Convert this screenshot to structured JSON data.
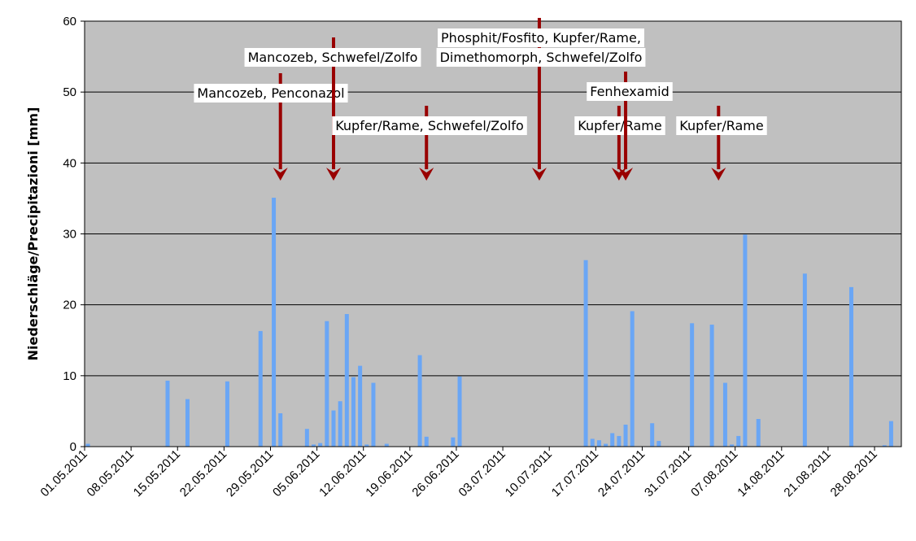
{
  "chart_data": {
    "type": "bar",
    "title": "",
    "xlabel": "",
    "ylabel": "Niederschläge/Precipitazioni [mm]",
    "ylim": [
      0,
      60
    ],
    "yticks": [
      0,
      10,
      20,
      30,
      40,
      50,
      60
    ],
    "grid": true,
    "x_start": "01.05.2011",
    "xtick_labels": [
      "01.05.2011",
      "08.05.2011",
      "15.05.2011",
      "22.05.2011",
      "29.05.2011",
      "05.06.2011",
      "12.06.2011",
      "19.06.2011",
      "26.06.2011",
      "03.07.2011",
      "10.07.2011",
      "17.07.2011",
      "24.07.2011",
      "31.07.2011",
      "07.08.2011",
      "14.08.2011",
      "21.08.2011",
      "28.08.2011"
    ],
    "colors": {
      "bar": "#6aa6f5",
      "plot_bg": "#c0c0c0",
      "arrow": "#990000"
    },
    "points": [
      {
        "date": "01.05.2011",
        "value": 0.4
      },
      {
        "date": "13.05.2011",
        "value": 9.3
      },
      {
        "date": "16.05.2011",
        "value": 6.7
      },
      {
        "date": "22.05.2011",
        "value": 9.2
      },
      {
        "date": "27.05.2011",
        "value": 16.3
      },
      {
        "date": "29.05.2011",
        "value": 35.1
      },
      {
        "date": "30.05.2011",
        "value": 4.7
      },
      {
        "date": "03.06.2011",
        "value": 2.5
      },
      {
        "date": "04.06.2011",
        "value": 0.3
      },
      {
        "date": "05.06.2011",
        "value": 0.5
      },
      {
        "date": "06.06.2011",
        "value": 17.7
      },
      {
        "date": "07.06.2011",
        "value": 5.1
      },
      {
        "date": "08.06.2011",
        "value": 6.4
      },
      {
        "date": "09.06.2011",
        "value": 18.7
      },
      {
        "date": "10.06.2011",
        "value": 9.8
      },
      {
        "date": "11.06.2011",
        "value": 11.4
      },
      {
        "date": "12.06.2011",
        "value": 0.3
      },
      {
        "date": "13.06.2011",
        "value": 9.0
      },
      {
        "date": "15.06.2011",
        "value": 0.4
      },
      {
        "date": "20.06.2011",
        "value": 12.9
      },
      {
        "date": "21.06.2011",
        "value": 1.4
      },
      {
        "date": "25.06.2011",
        "value": 1.3
      },
      {
        "date": "26.06.2011",
        "value": 9.9
      },
      {
        "date": "15.07.2011",
        "value": 26.3
      },
      {
        "date": "16.07.2011",
        "value": 1.1
      },
      {
        "date": "17.07.2011",
        "value": 0.9
      },
      {
        "date": "18.07.2011",
        "value": 0.4
      },
      {
        "date": "19.07.2011",
        "value": 1.9
      },
      {
        "date": "20.07.2011",
        "value": 1.5
      },
      {
        "date": "21.07.2011",
        "value": 3.1
      },
      {
        "date": "22.07.2011",
        "value": 19.1
      },
      {
        "date": "25.07.2011",
        "value": 3.3
      },
      {
        "date": "26.07.2011",
        "value": 0.8
      },
      {
        "date": "31.07.2011",
        "value": 17.4
      },
      {
        "date": "03.08.2011",
        "value": 17.2
      },
      {
        "date": "05.08.2011",
        "value": 9.0
      },
      {
        "date": "06.08.2011",
        "value": 0.3
      },
      {
        "date": "07.08.2011",
        "value": 1.5
      },
      {
        "date": "08.08.2011",
        "value": 29.9
      },
      {
        "date": "10.08.2011",
        "value": 3.9
      },
      {
        "date": "17.08.2011",
        "value": 24.4
      },
      {
        "date": "24.08.2011",
        "value": 22.5
      },
      {
        "date": "29.08.2011",
        "value": 0.2
      },
      {
        "date": "30.08.2011",
        "value": 3.6
      }
    ],
    "annotations": [
      {
        "text_lines": [
          "Mancozeb, Penconazol"
        ],
        "date": "30.05.2011"
      },
      {
        "text_lines": [
          "Mancozeb, Schwefel/Zolfo"
        ],
        "date": "07.06.2011"
      },
      {
        "text_lines": [
          "Kupfer/Rame, Schwefel/Zolfo"
        ],
        "date": "21.06.2011"
      },
      {
        "text_lines": [
          "Phosphit/Fosfito, Kupfer/Rame,",
          "Dimethomorph, Schwefel/Zolfo"
        ],
        "date": "08.07.2011"
      },
      {
        "text_lines": [
          "Kupfer/Rame"
        ],
        "date": "20.07.2011"
      },
      {
        "text_lines": [
          "Fenhexamid"
        ],
        "date": "21.07.2011"
      },
      {
        "text_lines": [
          "Kupfer/Rame"
        ],
        "date": "04.08.2011"
      }
    ]
  }
}
